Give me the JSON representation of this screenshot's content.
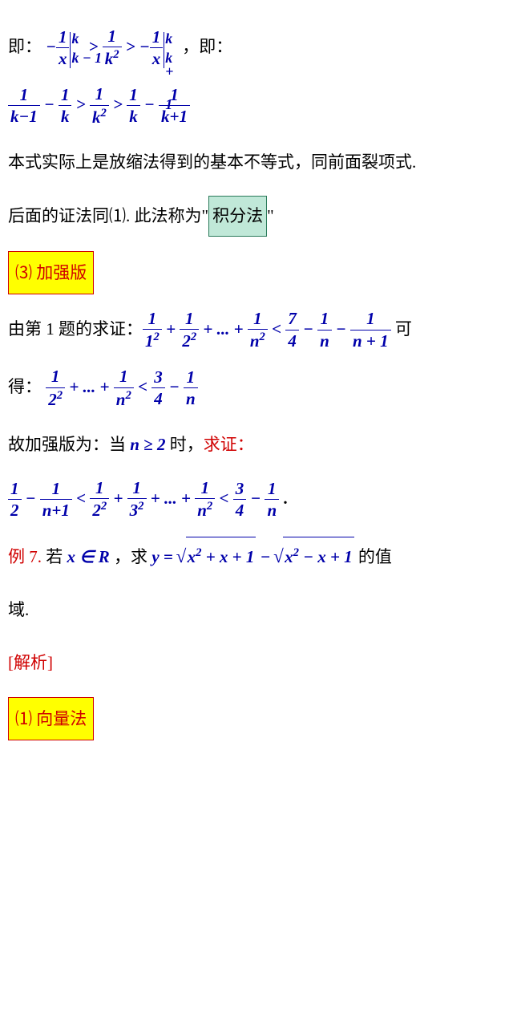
{
  "line1": {
    "pre": "即：",
    "post": "，即："
  },
  "eval1": {
    "neg": "−",
    "one": "1",
    "x": "x",
    "k": "k",
    "km1": "k − 1",
    "kp1": "k + 1"
  },
  "gt": ">",
  "f_1k2": {
    "n": "1",
    "d": "k"
  },
  "line2": {
    "f1": {
      "n": "1",
      "d": "k−1"
    },
    "m": "−",
    "f2": {
      "n": "1",
      "d": "k"
    },
    "f3": {
      "n": "1",
      "d": "k"
    },
    "f4": {
      "n": "1",
      "d": "k"
    },
    "f5": {
      "n": "1",
      "d": "k+1"
    }
  },
  "para3": "本式实际上是放缩法得到的基本不等式，同前面裂项式.",
  "para4": {
    "a": "后面的证法同⑴.  此法称为\"",
    "b": "积分法",
    "c": "\""
  },
  "box3": "⑶  加强版",
  "line5": {
    "pre": "由第 1 题的求证：",
    "post": " 可"
  },
  "chain": {
    "f1": {
      "n": "1",
      "d": "1"
    },
    "p": "+",
    "f2": {
      "n": "1",
      "d": "2"
    },
    "dots": "+ ... +",
    "fn": {
      "n": "1",
      "d": "n"
    },
    "lt": "<",
    "f74": {
      "n": "7",
      "d": "4"
    },
    "m": "−",
    "f1n": {
      "n": "1",
      "d": "n"
    },
    "f1n1": {
      "n": "1",
      "d": "n + 1"
    }
  },
  "line6": {
    "pre": "得："
  },
  "chain2": {
    "f2": {
      "n": "1",
      "d": "2"
    },
    "dots": "+ ... +",
    "fn": {
      "n": "1",
      "d": "n"
    },
    "lt": "<",
    "f34": {
      "n": "3",
      "d": "4"
    },
    "m": "−",
    "f1n": {
      "n": "1",
      "d": "n"
    }
  },
  "line7": {
    "a": "故加强版为：当 ",
    "b": "n ≥ 2",
    "c": " 时，",
    "d": "求证："
  },
  "chain3": {
    "f12": {
      "n": "1",
      "d": "2"
    },
    "m": "−",
    "f1n1": {
      "n": "1",
      "d": "n+1"
    },
    "lt": "<",
    "f22": {
      "n": "1",
      "d": "2"
    },
    "p": "+",
    "f32": {
      "n": "1",
      "d": "3"
    },
    "dots": "+ ... +",
    "fn2": {
      "n": "1",
      "d": "n"
    },
    "f34": {
      "n": "3",
      "d": "4"
    },
    "f1n": {
      "n": "1",
      "d": "n"
    },
    "dot": "."
  },
  "ex7": {
    "a": "例 7. ",
    "b": " 若 ",
    "c": "x ∈ R",
    "d": " ，求 ",
    "e": "y = ",
    "sq1": "x",
    "sq1b": " + x + 1",
    "sq2": "x",
    "sq2b": " − x + 1",
    "f": " 的值"
  },
  "yu": "域.",
  "jiexi": "[解析]",
  "box1": "⑴  向量法"
}
